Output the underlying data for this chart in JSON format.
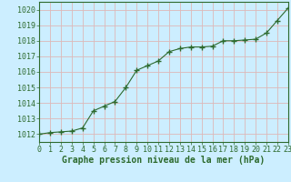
{
  "x": [
    0,
    1,
    2,
    3,
    4,
    5,
    6,
    7,
    8,
    9,
    10,
    11,
    12,
    13,
    14,
    15,
    16,
    17,
    18,
    19,
    20,
    21,
    22,
    23
  ],
  "y": [
    1012.0,
    1012.1,
    1012.15,
    1012.2,
    1012.4,
    1013.5,
    1013.8,
    1014.1,
    1015.0,
    1016.1,
    1016.4,
    1016.7,
    1017.3,
    1017.5,
    1017.6,
    1017.6,
    1017.65,
    1018.0,
    1018.0,
    1018.05,
    1018.1,
    1018.5,
    1019.3,
    1020.1
  ],
  "line_color": "#2d6a2d",
  "marker_color": "#2d6a2d",
  "bg_color": "#cceeff",
  "plot_bg_color": "#cceeff",
  "grid_color": "#ddb8b8",
  "xlabel": "Graphe pression niveau de la mer (hPa)",
  "xlabel_color": "#2d6a2d",
  "tick_color": "#2d6a2d",
  "ylim": [
    1011.5,
    1020.5
  ],
  "yticks": [
    1012,
    1013,
    1014,
    1015,
    1016,
    1017,
    1018,
    1019,
    1020
  ],
  "xticks": [
    0,
    1,
    2,
    3,
    4,
    5,
    6,
    7,
    8,
    9,
    10,
    11,
    12,
    13,
    14,
    15,
    16,
    17,
    18,
    19,
    20,
    21,
    22,
    23
  ],
  "xlabel_fontsize": 7.0,
  "tick_fontsize": 6.0
}
